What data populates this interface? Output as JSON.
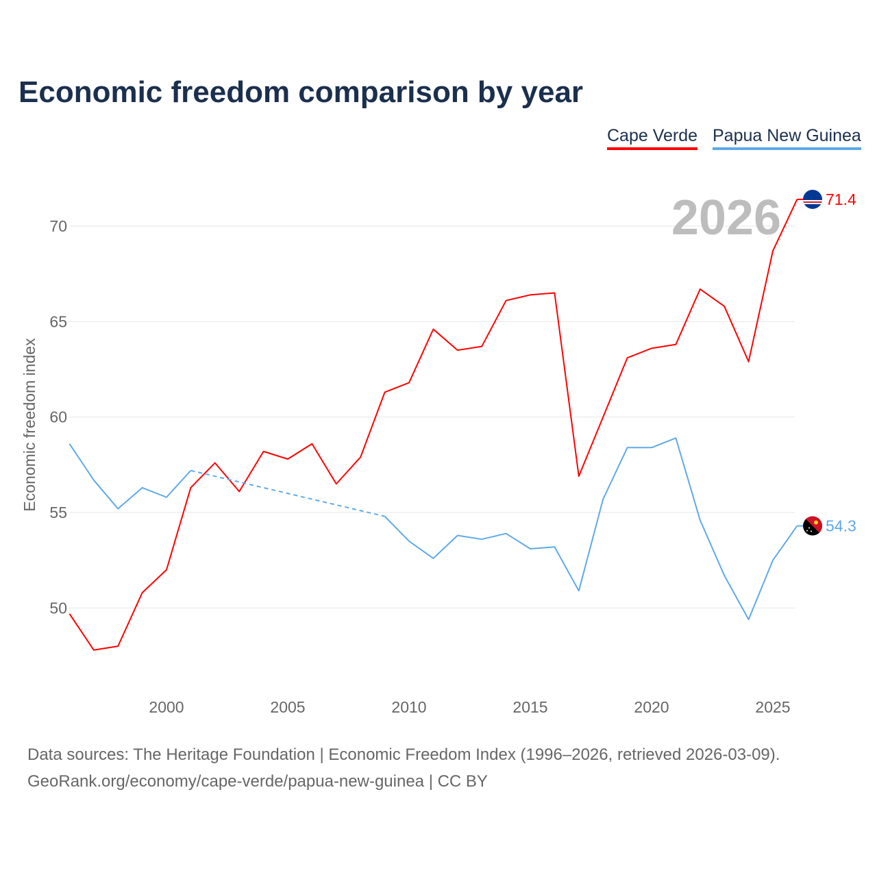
{
  "chart_data": {
    "type": "line",
    "title": "Economic freedom comparison by year",
    "xlabel": "",
    "ylabel": "Economic freedom index",
    "xlim": [
      1996,
      2026
    ],
    "ylim": [
      45.5,
      72.5
    ],
    "x_ticks": [
      2000,
      2005,
      2010,
      2015,
      2020,
      2025
    ],
    "y_ticks": [
      50,
      55,
      60,
      65,
      70
    ],
    "grid": true,
    "legend_placement": "top-right",
    "year_label": "2026",
    "x": [
      1996,
      1997,
      1998,
      1999,
      2000,
      2001,
      2002,
      2003,
      2004,
      2005,
      2006,
      2007,
      2008,
      2009,
      2010,
      2011,
      2012,
      2013,
      2014,
      2015,
      2016,
      2017,
      2018,
      2019,
      2020,
      2021,
      2022,
      2023,
      2024,
      2025,
      2026
    ],
    "series": [
      {
        "name": "Cape Verde",
        "color": "#ff0000",
        "end_label": "71.4",
        "values": [
          49.7,
          47.8,
          48.0,
          50.8,
          52.0,
          56.3,
          57.6,
          56.1,
          58.2,
          57.8,
          58.6,
          56.5,
          57.9,
          61.3,
          61.8,
          64.6,
          63.5,
          63.7,
          66.1,
          66.4,
          66.5,
          56.9,
          60.0,
          63.1,
          63.6,
          63.8,
          66.7,
          65.8,
          62.9,
          68.7,
          71.4
        ]
      },
      {
        "name": "Papua New Guinea",
        "color": "#5ea9ea",
        "end_label": "54.3",
        "values": [
          58.6,
          56.7,
          55.2,
          56.3,
          55.8,
          57.2,
          null,
          null,
          null,
          null,
          null,
          null,
          null,
          54.8,
          53.5,
          52.6,
          53.8,
          53.6,
          53.9,
          53.1,
          53.2,
          50.9,
          55.7,
          58.4,
          58.4,
          58.9,
          54.6,
          51.7,
          49.4,
          52.5,
          54.3
        ]
      }
    ]
  },
  "footer": {
    "line1": "Data sources: The Heritage Foundation | Economic Freedom Index (1996–2026, retrieved 2026-03-09).",
    "line2": "GeoRank.org/economy/cape-verde/papua-new-guinea | CC BY"
  }
}
